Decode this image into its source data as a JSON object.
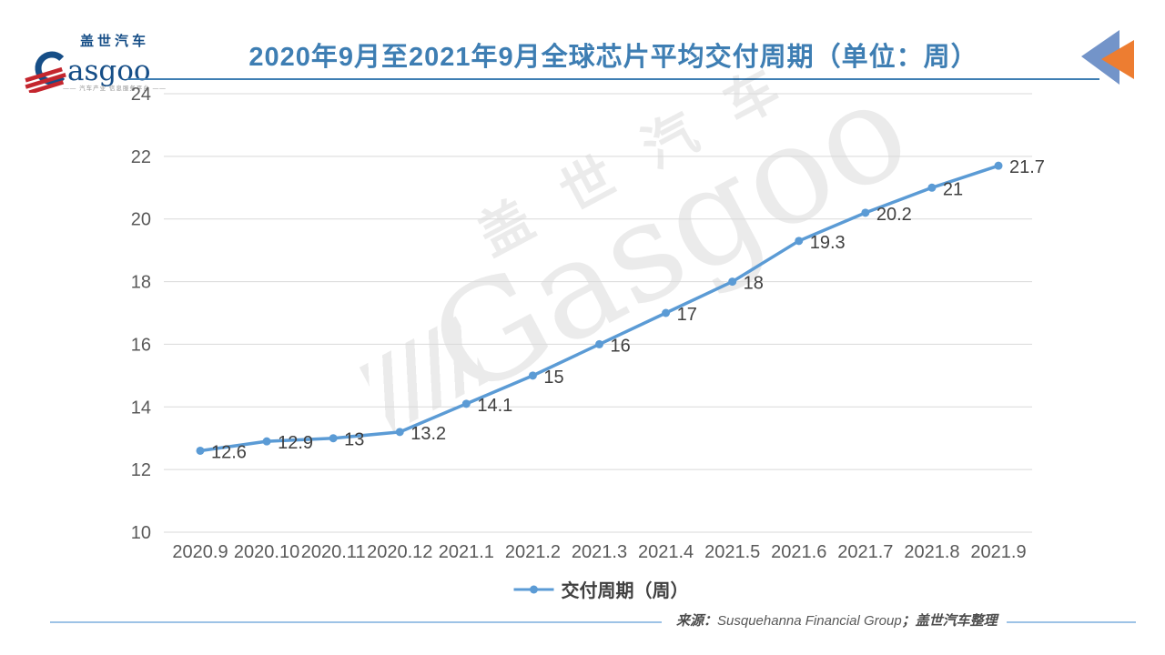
{
  "header": {
    "logo": {
      "cn": "盖世汽车",
      "en_rest": "asgoo",
      "tagline": "—— 汽车产业 信息服务平台 ——",
      "navy": "#164E87",
      "red": "#C4262E"
    },
    "title": "2020年9月至2021年9月全球芯片平均交付周期（单位：周）",
    "title_color": "#3E7EB3",
    "corner_icon": {
      "name": "double-left-triangles",
      "blue": "#7394C9",
      "orange": "#ED7D31"
    }
  },
  "watermark": {
    "cn": "盖世汽车",
    "en": "Gasgoo"
  },
  "chart_data": {
    "type": "line",
    "title": "2020年9月至2021年9月全球芯片平均交付周期（单位：周）",
    "categories": [
      "2020.9",
      "2020.10",
      "2020.11",
      "2020.12",
      "2021.1",
      "2021.2",
      "2021.3",
      "2021.4",
      "2021.5",
      "2021.6",
      "2021.7",
      "2021.8",
      "2021.9"
    ],
    "series": [
      {
        "name": "交付周期（周）",
        "color": "#5B9BD5",
        "values": [
          12.6,
          12.9,
          13,
          13.2,
          14.1,
          15,
          16,
          17,
          18,
          19.3,
          20.2,
          21,
          21.7
        ],
        "value_labels": [
          "12.6",
          "12.9",
          "13",
          "13.2",
          "14.1",
          "15",
          "16",
          "17",
          "18",
          "19.3",
          "20.2",
          "21",
          "21.7"
        ]
      }
    ],
    "xlabel": "",
    "ylabel": "",
    "ylim": [
      10,
      24
    ],
    "ytick_step": 2,
    "grid": "horizontal",
    "gridline_color": "#D9D9D9",
    "axis_label_color": "#595959",
    "data_label_color": "#3F3F3F",
    "legend_position": "bottom"
  },
  "legend": {
    "label": "交付周期（周）"
  },
  "footer": {
    "prefix": "来源：",
    "source_en": "Susquehanna Financial Group",
    "suffix": "；盖世汽车整理",
    "line_color": "#9DC3E6"
  }
}
